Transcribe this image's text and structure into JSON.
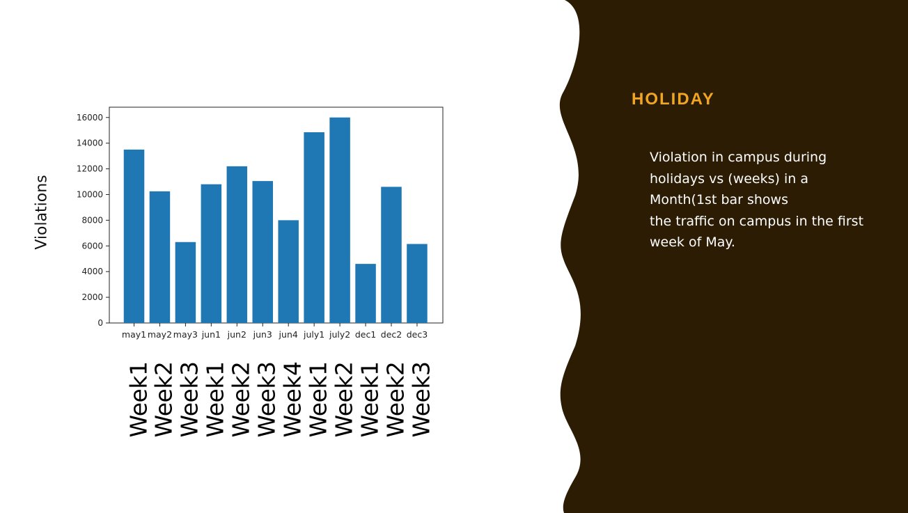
{
  "chart_data": {
    "type": "bar",
    "categories": [
      "may1",
      "may2",
      "may3",
      "jun1",
      "jun2",
      "jun3",
      "jun4",
      "july1",
      "july2",
      "dec1",
      "dec2",
      "dec3"
    ],
    "values": [
      13500,
      10250,
      6300,
      10800,
      12200,
      11050,
      8000,
      14850,
      16000,
      4600,
      10600,
      6150
    ],
    "ylabel": "Violations",
    "ylim": [
      0,
      16800
    ],
    "yticks": [
      0,
      2000,
      4000,
      6000,
      8000,
      10000,
      12000,
      14000,
      16000
    ],
    "bar_color": "#1f77b4",
    "grid": false,
    "week_labels": [
      "Week1",
      "Week2",
      "Week3",
      "Week1",
      "Week2",
      "Week3",
      "Week4",
      "Week1",
      "Week2",
      "Week1",
      "Week2",
      "Week3"
    ]
  },
  "panel": {
    "heading": "HOLIDAY",
    "lines": [
      "Violation in campus during",
      "holidays vs (weeks) in a",
      "Month(1st bar shows",
      "the traffic on campus in the first",
      "week of May."
    ],
    "background": "#2c1c04",
    "accent": "#f0a623"
  }
}
